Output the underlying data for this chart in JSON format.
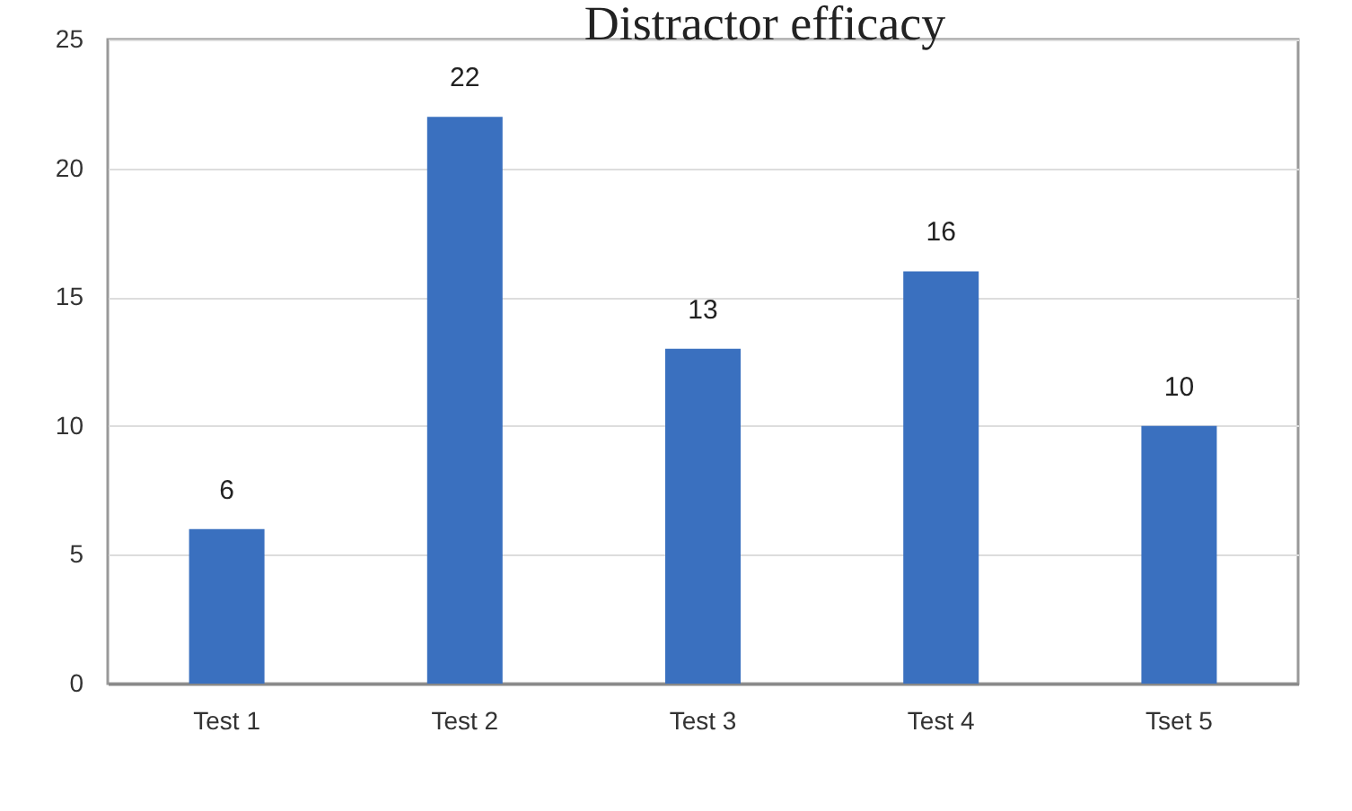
{
  "chart_data": {
    "type": "bar",
    "title": "Distractor efficacy",
    "categories": [
      "Test 1",
      "Test 2",
      "Test 3",
      "Test 4",
      "Tset 5"
    ],
    "values": [
      6,
      22,
      13,
      16,
      10
    ],
    "color": "#3a70bf",
    "ylim": [
      0,
      25
    ],
    "yticks": [
      0,
      5,
      10,
      15,
      20,
      25
    ],
    "grid": "y",
    "data_labels": true
  }
}
